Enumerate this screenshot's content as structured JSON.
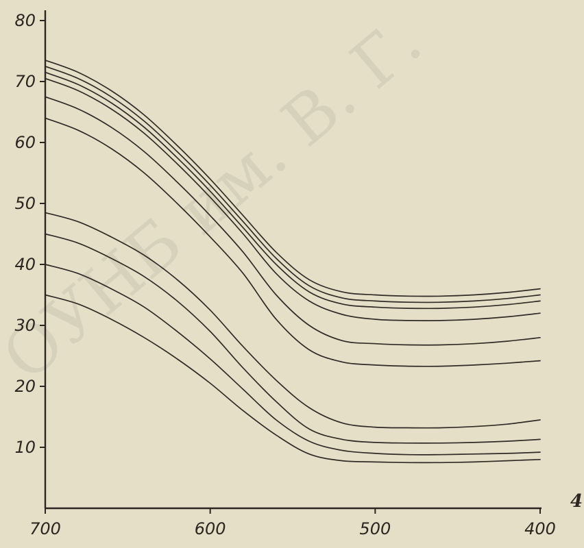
{
  "chart_data": {
    "type": "line",
    "title": "",
    "xlabel": "",
    "ylabel": "",
    "xlim": [
      700,
      400
    ],
    "ylim": [
      0,
      80
    ],
    "x_reversed": true,
    "grid": false,
    "legend": "none",
    "x_ticks": [
      "700",
      "600",
      "500",
      "400"
    ],
    "y_ticks": [
      "10",
      "20",
      "30",
      "40",
      "50",
      "60",
      "70",
      "80"
    ],
    "corner_label": "4",
    "watermark": "ОУНБ им. В. Г.",
    "line_color": "#2f2a26",
    "background_color": "#e4dfc6",
    "x": [
      700,
      680,
      660,
      640,
      620,
      600,
      580,
      560,
      540,
      520,
      500,
      480,
      460,
      440,
      420,
      400
    ],
    "series": [
      {
        "values": [
          73.5,
          71.5,
          68.5,
          64.5,
          59.5,
          54.0,
          48.0,
          42.0,
          37.5,
          35.5,
          35.0,
          34.8,
          34.8,
          35.0,
          35.4,
          36.0
        ]
      },
      {
        "values": [
          72.5,
          70.5,
          67.5,
          63.5,
          58.5,
          53.0,
          47.0,
          41.0,
          36.5,
          34.5,
          34.0,
          33.8,
          33.8,
          34.0,
          34.4,
          35.0
        ]
      },
      {
        "values": [
          71.5,
          69.5,
          66.5,
          62.5,
          57.5,
          52.0,
          46.0,
          40.0,
          35.5,
          33.5,
          33.0,
          32.8,
          32.8,
          33.0,
          33.4,
          34.0
        ]
      },
      {
        "values": [
          70.5,
          68.5,
          65.5,
          61.5,
          56.5,
          51.0,
          45.0,
          38.5,
          34.0,
          31.8,
          31.0,
          30.8,
          30.8,
          31.0,
          31.4,
          32.0
        ]
      },
      {
        "values": [
          67.5,
          65.5,
          62.5,
          58.5,
          53.5,
          48.0,
          42.0,
          35.0,
          30.0,
          27.5,
          27.0,
          26.8,
          26.8,
          27.0,
          27.4,
          28.0
        ]
      },
      {
        "values": [
          64.0,
          62.0,
          59.0,
          55.0,
          50.0,
          44.5,
          38.5,
          31.0,
          26.0,
          24.0,
          23.5,
          23.3,
          23.3,
          23.5,
          23.8,
          24.2
        ]
      },
      {
        "values": [
          48.5,
          47.0,
          44.5,
          41.5,
          37.5,
          32.5,
          26.5,
          21.0,
          16.5,
          14.0,
          13.3,
          13.2,
          13.2,
          13.4,
          13.8,
          14.5
        ]
      },
      {
        "values": [
          45.0,
          43.5,
          41.0,
          38.0,
          34.0,
          29.0,
          23.0,
          17.5,
          13.0,
          11.3,
          10.8,
          10.7,
          10.7,
          10.8,
          11.0,
          11.3
        ]
      },
      {
        "values": [
          40.0,
          38.5,
          36.0,
          33.0,
          29.0,
          24.5,
          19.5,
          14.5,
          11.0,
          9.5,
          9.0,
          8.8,
          8.8,
          8.9,
          9.0,
          9.2
        ]
      },
      {
        "values": [
          35.0,
          33.5,
          31.0,
          28.0,
          24.5,
          20.5,
          16.0,
          12.0,
          8.9,
          7.8,
          7.6,
          7.5,
          7.5,
          7.6,
          7.8,
          8.0
        ]
      }
    ]
  }
}
